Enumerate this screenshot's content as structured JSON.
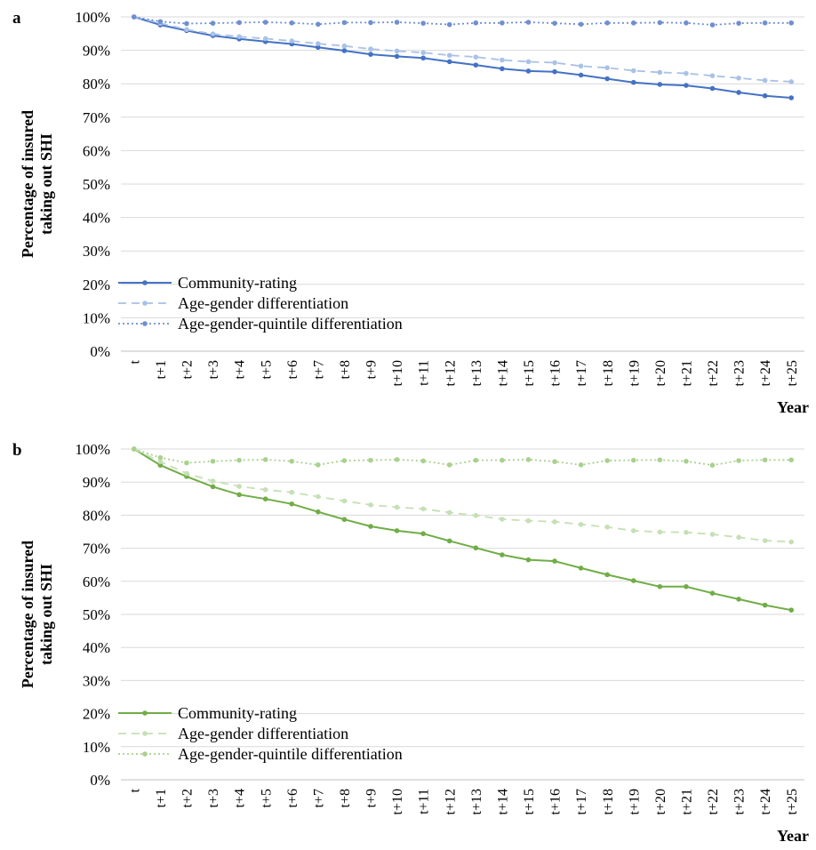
{
  "chart_data": [
    {
      "type": "line",
      "panel": "a",
      "title": "",
      "xlabel": "Year",
      "ylabel": "Percentage of insured taking out SHI",
      "ylim": [
        0,
        100
      ],
      "yticks": [
        "0%",
        "10%",
        "20%",
        "30%",
        "40%",
        "50%",
        "60%",
        "70%",
        "80%",
        "90%",
        "100%"
      ],
      "categories": [
        "t",
        "t+1",
        "t+2",
        "t+3",
        "t+4",
        "t+5",
        "t+6",
        "t+7",
        "t+8",
        "t+9",
        "t+10",
        "t+11",
        "t+12",
        "t+13",
        "t+14",
        "t+15",
        "t+16",
        "t+17",
        "t+18",
        "t+19",
        "t+20",
        "t+21",
        "t+22",
        "t+23",
        "t+24",
        "t+25"
      ],
      "legend_position": "bottom-left inside plot",
      "grid": true,
      "series": [
        {
          "name": "Community-rating",
          "color": "#4472c4",
          "style": "solid",
          "values": [
            100,
            97.6,
            95.9,
            94.4,
            93.4,
            92.6,
            91.9,
            90.9,
            89.9,
            88.8,
            88.2,
            87.7,
            86.6,
            85.6,
            84.5,
            83.8,
            83.6,
            82.6,
            81.5,
            80.4,
            79.8,
            79.5,
            78.6,
            77.4,
            76.4,
            75.8
          ]
        },
        {
          "name": "Age-gender differentiation",
          "color": "#a9c1e6",
          "style": "dashed",
          "values": [
            100,
            98.1,
            96.2,
            94.9,
            94.1,
            93.5,
            92.8,
            92.0,
            91.3,
            90.4,
            89.8,
            89.3,
            88.5,
            88.0,
            87.1,
            86.6,
            86.3,
            85.3,
            84.8,
            83.9,
            83.4,
            83.1,
            82.4,
            81.7,
            81.0,
            80.6
          ]
        },
        {
          "name": "Age-gender-quintile differentiation",
          "color": "#6f8fd1",
          "style": "dotted",
          "values": [
            100,
            98.6,
            98.0,
            98.1,
            98.3,
            98.4,
            98.2,
            97.8,
            98.3,
            98.3,
            98.4,
            98.1,
            97.7,
            98.2,
            98.2,
            98.4,
            98.1,
            97.8,
            98.2,
            98.2,
            98.3,
            98.2,
            97.6,
            98.1,
            98.2,
            98.2
          ]
        }
      ]
    },
    {
      "type": "line",
      "panel": "b",
      "title": "",
      "xlabel": "Year",
      "ylabel": "Percentage of insured taking out SHI",
      "ylim": [
        0,
        100
      ],
      "yticks": [
        "0%",
        "10%",
        "20%",
        "30%",
        "40%",
        "50%",
        "60%",
        "70%",
        "80%",
        "90%",
        "100%"
      ],
      "categories": [
        "t",
        "t+1",
        "t+2",
        "t+3",
        "t+4",
        "t+5",
        "t+6",
        "t+7",
        "t+8",
        "t+9",
        "t+10",
        "t+11",
        "t+12",
        "t+13",
        "t+14",
        "t+15",
        "t+16",
        "t+17",
        "t+18",
        "t+19",
        "t+20",
        "t+21",
        "t+22",
        "t+23",
        "t+24",
        "t+25"
      ],
      "legend_position": "bottom-left inside plot",
      "grid": true,
      "series": [
        {
          "name": "Community-rating",
          "color": "#70ad47",
          "style": "solid",
          "values": [
            100,
            95.1,
            91.7,
            88.6,
            86.2,
            84.9,
            83.4,
            81.0,
            78.7,
            76.6,
            75.3,
            74.4,
            72.2,
            70.1,
            68.0,
            66.5,
            66.1,
            64.0,
            62.0,
            60.2,
            58.4,
            58.4,
            56.4,
            54.6,
            52.8,
            51.3
          ]
        },
        {
          "name": "Age-gender differentiation",
          "color": "#c5e0b4",
          "style": "dashed",
          "values": [
            100,
            96.2,
            92.6,
            90.3,
            88.7,
            87.7,
            86.9,
            85.6,
            84.3,
            83.1,
            82.4,
            81.9,
            80.8,
            79.9,
            78.8,
            78.3,
            78.0,
            77.2,
            76.4,
            75.3,
            74.9,
            74.8,
            74.2,
            73.3,
            72.3,
            71.9
          ]
        },
        {
          "name": "Age-gender-quintile differentiation",
          "color": "#a9d18e",
          "style": "dotted",
          "values": [
            100,
            97.4,
            95.8,
            96.3,
            96.6,
            96.8,
            96.3,
            95.2,
            96.5,
            96.6,
            96.8,
            96.4,
            95.2,
            96.6,
            96.6,
            96.8,
            96.2,
            95.2,
            96.5,
            96.6,
            96.7,
            96.3,
            95.1,
            96.5,
            96.7,
            96.7
          ]
        }
      ]
    }
  ]
}
